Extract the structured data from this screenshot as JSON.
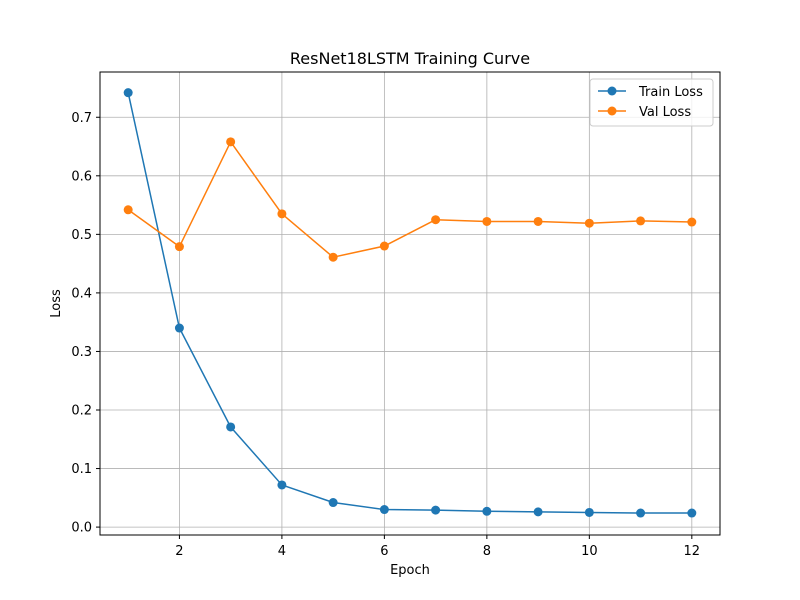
{
  "chart_data": {
    "type": "line",
    "title": "ResNet18LSTM Training Curve",
    "xlabel": "Epoch",
    "ylabel": "Loss",
    "x": [
      1,
      2,
      3,
      4,
      5,
      6,
      7,
      8,
      9,
      10,
      11,
      12
    ],
    "xlim": [
      0.45,
      12.55
    ],
    "ylim": [
      -0.0135,
      0.7773
    ],
    "xticks": [
      2,
      4,
      6,
      8,
      10,
      12
    ],
    "xtick_labels": [
      "2",
      "4",
      "6",
      "8",
      "10",
      "12"
    ],
    "yticks": [
      0.0,
      0.1,
      0.2,
      0.3,
      0.4,
      0.5,
      0.6,
      0.7
    ],
    "ytick_labels": [
      "0.0",
      "0.1",
      "0.2",
      "0.3",
      "0.4",
      "0.5",
      "0.6",
      "0.7"
    ],
    "grid": true,
    "legend_position": "top-right",
    "series": [
      {
        "name": "Train Loss",
        "color": "#1f77b4",
        "marker": "circle",
        "values": [
          0.742,
          0.34,
          0.171,
          0.072,
          0.042,
          0.03,
          0.029,
          0.027,
          0.026,
          0.025,
          0.024,
          0.024
        ]
      },
      {
        "name": "Val Loss",
        "color": "#ff7f0e",
        "marker": "circle",
        "values": [
          0.542,
          0.479,
          0.658,
          0.535,
          0.461,
          0.48,
          0.525,
          0.522,
          0.522,
          0.519,
          0.523,
          0.521
        ]
      }
    ]
  }
}
